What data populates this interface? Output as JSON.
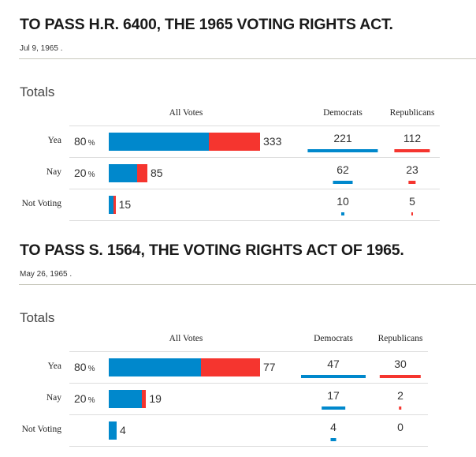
{
  "colors": {
    "dem": "#0088cc",
    "rep": "#f5352f"
  },
  "sections": [
    {
      "title": "TO PASS H.R. 6400, THE 1965 VOTING RIGHTS ACT.",
      "date": "Jul 9, 1965 .",
      "totals_label": "Totals",
      "headers": {
        "all": "All Votes",
        "dem": "Democrats",
        "rep": "Republicans"
      },
      "rows": [
        {
          "label": "Yea",
          "pct": "80",
          "pct_sign": "%",
          "total": "333",
          "dem": 221,
          "rep": 112
        },
        {
          "label": "Nay",
          "pct": "20",
          "pct_sign": "%",
          "total": "85",
          "dem": 62,
          "rep": 23
        },
        {
          "label": "Not Voting",
          "pct": "",
          "pct_sign": "",
          "total": "15",
          "dem": 10,
          "rep": 5
        }
      ]
    },
    {
      "title": "TO PASS S. 1564, THE VOTING RIGHTS ACT OF 1965.",
      "date": "May 26, 1965 .",
      "totals_label": "Totals",
      "headers": {
        "all": "All Votes",
        "dem": "Democrats",
        "rep": "Republicans"
      },
      "rows": [
        {
          "label": "Yea",
          "pct": "80",
          "pct_sign": "%",
          "total": "77",
          "dem": 47,
          "rep": 30
        },
        {
          "label": "Nay",
          "pct": "20",
          "pct_sign": "%",
          "total": "19",
          "dem": 17,
          "rep": 2
        },
        {
          "label": "Not Voting",
          "pct": "",
          "pct_sign": "",
          "total": "4",
          "dem": 4,
          "rep": 0
        }
      ]
    }
  ]
}
